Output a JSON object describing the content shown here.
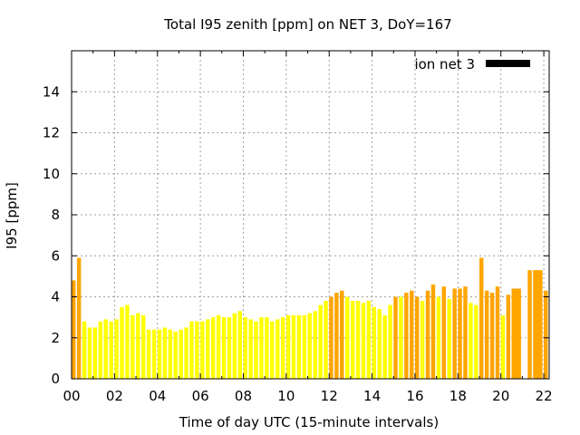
{
  "chart_data": {
    "type": "bar",
    "title": "Total I95 zenith [ppm] on NET 3, DoY=167",
    "xlabel": "Time of day UTC (15-minute intervals)",
    "ylabel": "I95 [ppm]",
    "xlim": [
      0,
      22.25
    ],
    "ylim": [
      0,
      16
    ],
    "x_ticks": [
      "00",
      "02",
      "04",
      "06",
      "08",
      "10",
      "12",
      "14",
      "16",
      "18",
      "20",
      "22"
    ],
    "y_ticks": [
      "0",
      "2",
      "4",
      "6",
      "8",
      "10",
      "12",
      "14"
    ],
    "grid": true,
    "legend": {
      "label": "ion net 3",
      "placement": "top-right",
      "color": "#000000"
    },
    "bar_interval_hours": 0.25,
    "colors": {
      "low": "#ffff00",
      "elevated": "#ffa500"
    },
    "series": [
      {
        "x": [
          0.0,
          0.25,
          0.5,
          0.75,
          1.0,
          1.25,
          1.5,
          1.75,
          2.0,
          2.25,
          2.5,
          2.75,
          3.0,
          3.25,
          3.5,
          3.75,
          4.0,
          4.25,
          4.5,
          4.75,
          5.0,
          5.25,
          5.5,
          5.75,
          6.0,
          6.25,
          6.5,
          6.75,
          7.0,
          7.25,
          7.5,
          7.75,
          8.0,
          8.25,
          8.5,
          8.75,
          9.0,
          9.25,
          9.5,
          9.75,
          10.0,
          10.25,
          10.5,
          10.75,
          11.0,
          11.25,
          11.5,
          11.75,
          12.0,
          12.25,
          12.5,
          12.75,
          13.0,
          13.25,
          13.5,
          13.75,
          14.0,
          14.25,
          14.5,
          14.75,
          15.0,
          15.25,
          15.5,
          15.75,
          16.0,
          16.25,
          16.5,
          16.75,
          17.0,
          17.25,
          17.5,
          17.75,
          18.0,
          18.25,
          18.5,
          18.75,
          19.0,
          19.25,
          19.5,
          19.75,
          20.0,
          20.25,
          20.5,
          21.25,
          21.5,
          22.0
        ],
        "values": [
          4.8,
          5.9,
          2.8,
          2.5,
          2.5,
          2.8,
          2.9,
          2.8,
          2.9,
          3.5,
          3.6,
          3.1,
          3.2,
          3.1,
          2.4,
          2.4,
          2.4,
          2.5,
          2.4,
          2.3,
          2.4,
          2.5,
          2.8,
          2.8,
          2.8,
          2.9,
          3.0,
          3.1,
          3.0,
          3.0,
          3.2,
          3.3,
          3.0,
          2.9,
          2.8,
          3.0,
          3.0,
          2.8,
          2.9,
          3.0,
          3.1,
          3.1,
          3.1,
          3.1,
          3.2,
          3.3,
          3.6,
          3.8,
          4.0,
          4.2,
          4.3,
          4.0,
          3.8,
          3.8,
          3.7,
          3.8,
          3.5,
          3.4,
          3.1,
          3.6,
          4.0,
          4.0,
          4.2,
          4.3,
          4.0,
          3.8,
          4.3,
          4.6,
          4.0,
          4.5,
          3.9,
          4.4,
          4.4,
          4.5,
          3.7,
          3.6,
          5.9,
          4.3,
          4.2,
          4.5,
          3.1,
          4.1,
          4.4,
          5.3,
          5.3,
          4.3
        ],
        "widths": [
          0.25,
          0.25,
          0.25,
          0.25,
          0.25,
          0.25,
          0.25,
          0.25,
          0.25,
          0.25,
          0.25,
          0.25,
          0.25,
          0.25,
          0.25,
          0.25,
          0.25,
          0.25,
          0.25,
          0.25,
          0.25,
          0.25,
          0.25,
          0.25,
          0.25,
          0.25,
          0.25,
          0.25,
          0.25,
          0.25,
          0.25,
          0.25,
          0.25,
          0.25,
          0.25,
          0.25,
          0.25,
          0.25,
          0.25,
          0.25,
          0.25,
          0.25,
          0.25,
          0.25,
          0.25,
          0.25,
          0.25,
          0.25,
          0.25,
          0.25,
          0.25,
          0.25,
          0.25,
          0.25,
          0.25,
          0.25,
          0.25,
          0.25,
          0.25,
          0.25,
          0.25,
          0.25,
          0.25,
          0.25,
          0.25,
          0.25,
          0.25,
          0.25,
          0.25,
          0.25,
          0.25,
          0.25,
          0.25,
          0.25,
          0.25,
          0.25,
          0.25,
          0.25,
          0.25,
          0.25,
          0.25,
          0.25,
          0.5,
          0.25,
          0.5,
          0.25
        ],
        "color_level": [
          "elevated",
          "elevated",
          "low",
          "low",
          "low",
          "low",
          "low",
          "low",
          "low",
          "low",
          "low",
          "low",
          "low",
          "low",
          "low",
          "low",
          "low",
          "low",
          "low",
          "low",
          "low",
          "low",
          "low",
          "low",
          "low",
          "low",
          "low",
          "low",
          "low",
          "low",
          "low",
          "low",
          "low",
          "low",
          "low",
          "low",
          "low",
          "low",
          "low",
          "low",
          "low",
          "low",
          "low",
          "low",
          "low",
          "low",
          "low",
          "low",
          "elevated",
          "elevated",
          "elevated",
          "low",
          "low",
          "low",
          "low",
          "low",
          "low",
          "low",
          "low",
          "low",
          "elevated",
          "low",
          "elevated",
          "elevated",
          "elevated",
          "low",
          "elevated",
          "elevated",
          "low",
          "elevated",
          "low",
          "elevated",
          "elevated",
          "elevated",
          "low",
          "low",
          "elevated",
          "elevated",
          "elevated",
          "elevated",
          "low",
          "elevated",
          "elevated",
          "elevated",
          "elevated",
          "elevated"
        ]
      }
    ]
  }
}
